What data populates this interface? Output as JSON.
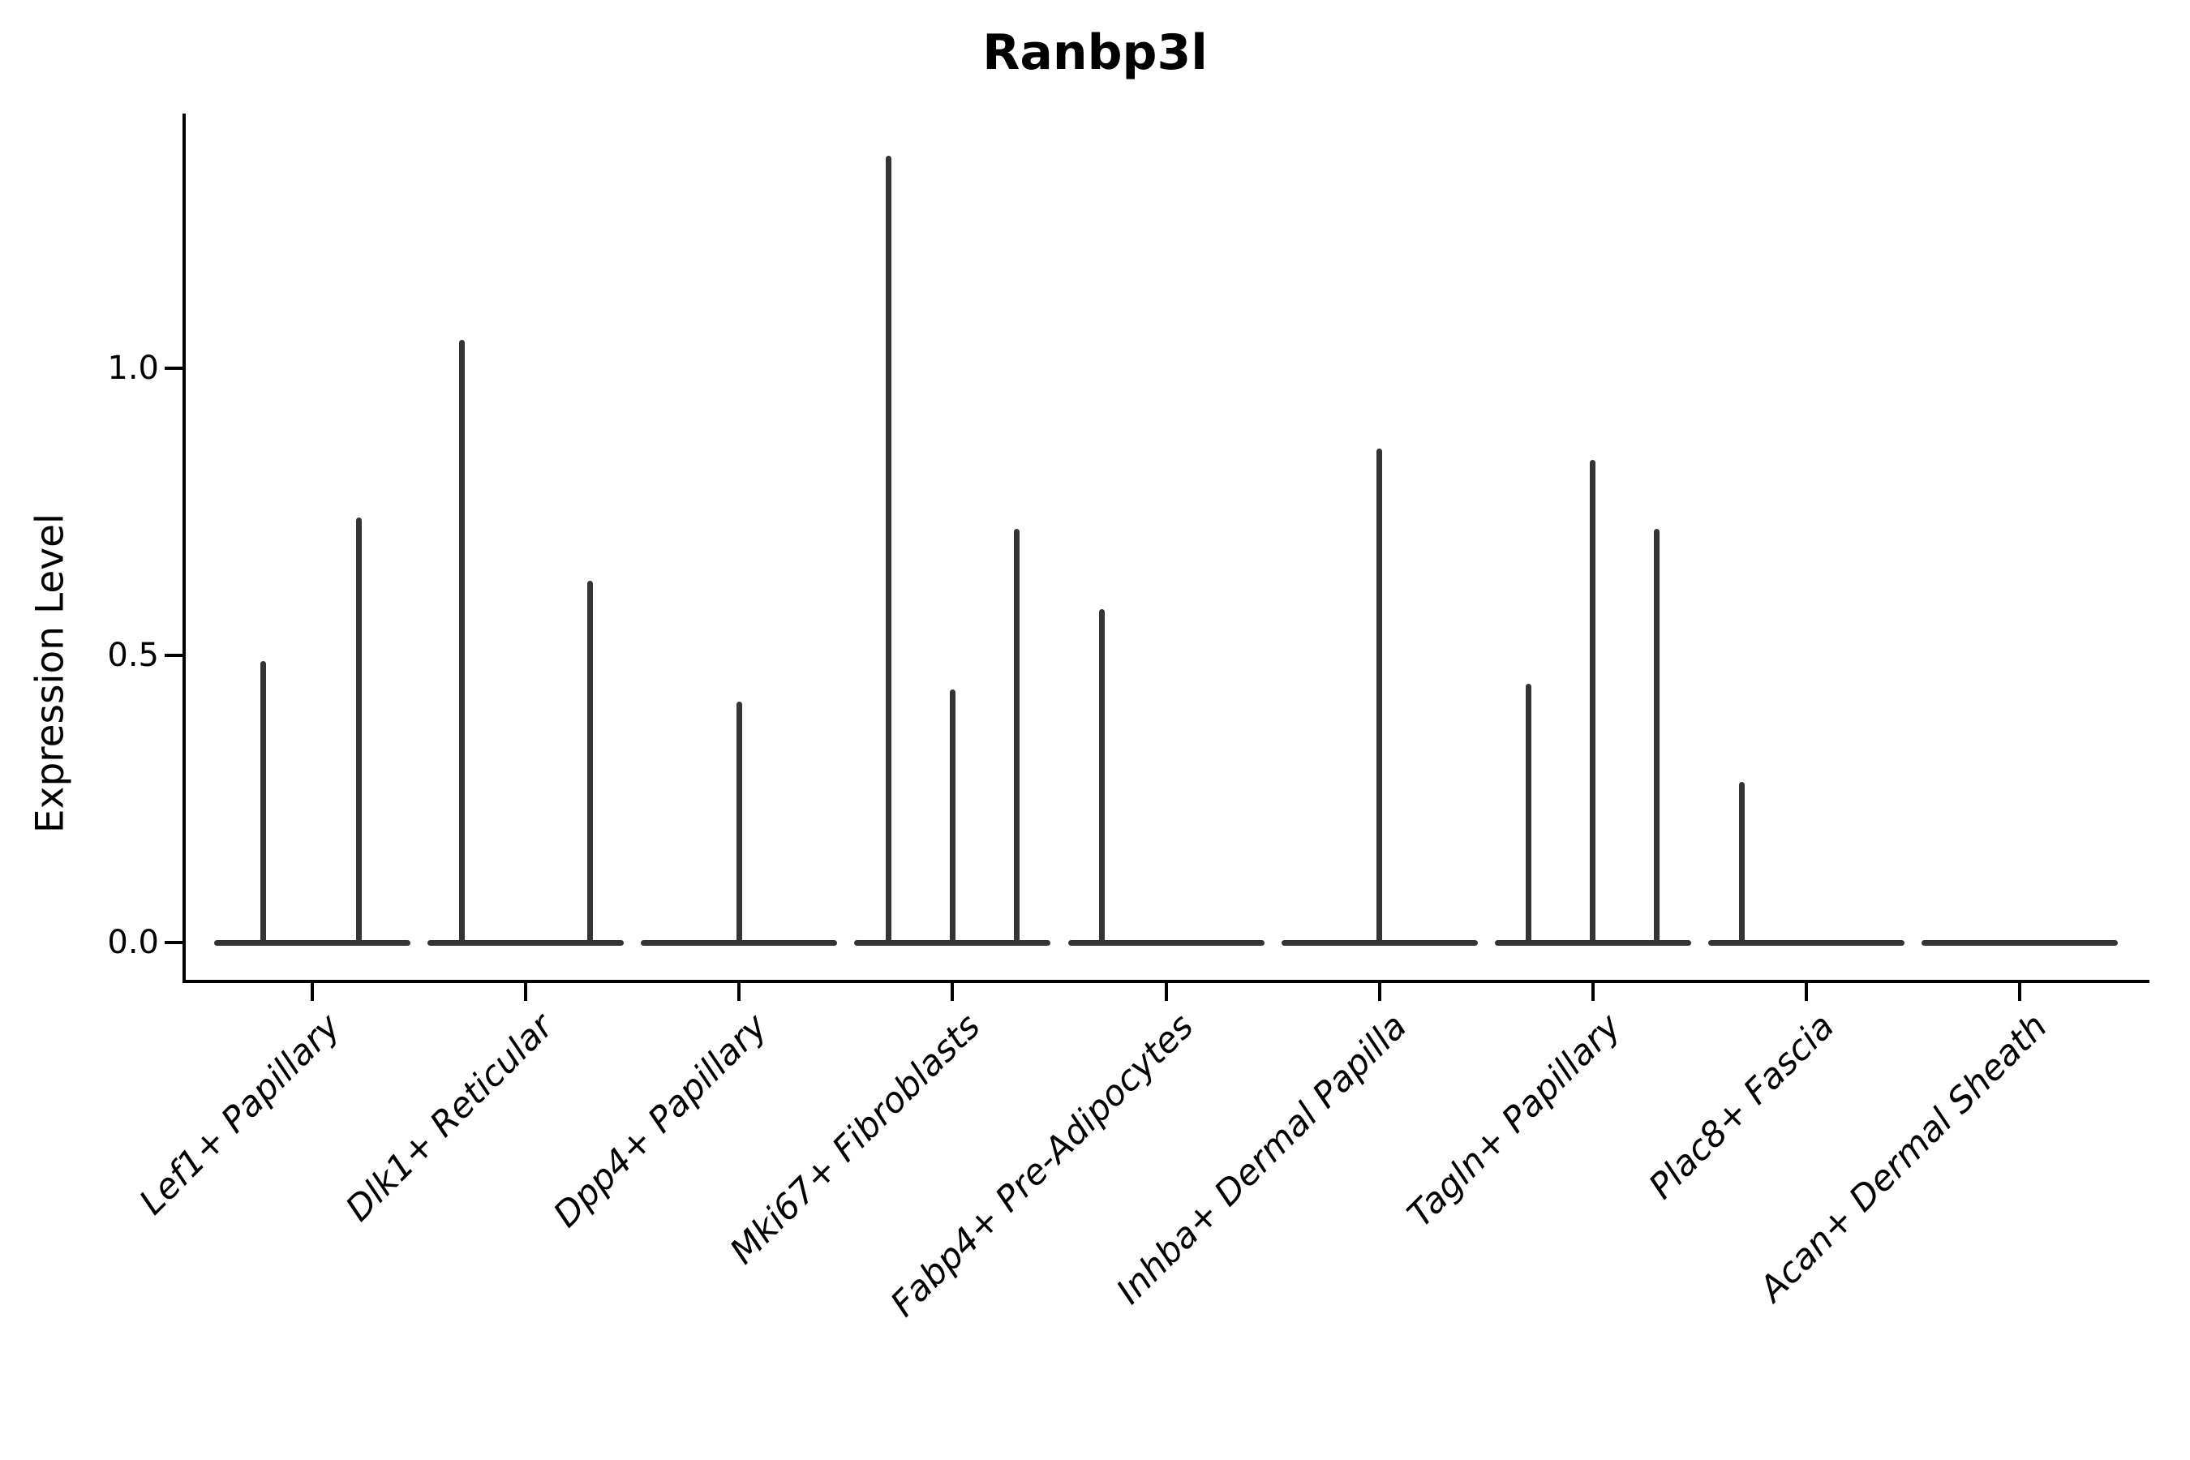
{
  "title": "Ranbp3l",
  "ylabel": "Expression Level",
  "yticklabels": [
    "0.0",
    "0.5",
    "1.0"
  ],
  "colors": {
    "violin": "#343434",
    "axis": "#000000",
    "text": "#000000",
    "background": "#ffffff"
  },
  "chart_data": {
    "type": "violin",
    "title": "Ranbp3l",
    "xlabel": "",
    "ylabel": "Expression Level",
    "categories": [
      "Lef1+ Papillary",
      "Dlk1+ Reticular",
      "Dpp4+ Papillary",
      "Mki67+ Fibroblasts",
      "Fabp4+ Pre-Adipocytes",
      "Inhba+ Dermal Papilla",
      "Tagln+ Papillary",
      "Plac8+ Fascia",
      "Acan+ Dermal Sheath"
    ],
    "yticks": [
      0.0,
      0.5,
      1.0
    ],
    "ylim": [
      -0.07,
      1.44
    ],
    "grid": false,
    "legend": "none",
    "violin_half_width": 0.46,
    "note": "Violins are collapsed to a flat line at expression 0 with thin vertical density spikes; offset is in category-width units relative to the category center",
    "series": [
      {
        "category": "Lef1+ Papillary",
        "spikes": [
          {
            "offset": -0.23,
            "value": 0.49
          },
          {
            "offset": 0.22,
            "value": 0.74
          }
        ]
      },
      {
        "category": "Dlk1+ Reticular",
        "spikes": [
          {
            "offset": -0.3,
            "value": 1.05
          },
          {
            "offset": 0.3,
            "value": 0.63
          }
        ]
      },
      {
        "category": "Dpp4+ Papillary",
        "spikes": [
          {
            "offset": 0.0,
            "value": 0.42
          }
        ]
      },
      {
        "category": "Mki67+ Fibroblasts",
        "spikes": [
          {
            "offset": -0.3,
            "value": 1.37
          },
          {
            "offset": 0.0,
            "value": 0.44
          },
          {
            "offset": 0.3,
            "value": 0.72
          }
        ]
      },
      {
        "category": "Fabp4+ Pre-Adipocytes",
        "spikes": [
          {
            "offset": -0.3,
            "value": 0.58
          }
        ]
      },
      {
        "category": "Inhba+ Dermal Papilla",
        "spikes": [
          {
            "offset": 0.0,
            "value": 0.86
          }
        ]
      },
      {
        "category": "Tagln+ Papillary",
        "spikes": [
          {
            "offset": -0.3,
            "value": 0.45
          },
          {
            "offset": 0.0,
            "value": 0.84
          },
          {
            "offset": 0.3,
            "value": 0.72
          }
        ]
      },
      {
        "category": "Plac8+ Fascia",
        "spikes": [
          {
            "offset": -0.3,
            "value": 0.28
          }
        ]
      },
      {
        "category": "Acan+ Dermal Sheath",
        "spikes": []
      }
    ]
  }
}
